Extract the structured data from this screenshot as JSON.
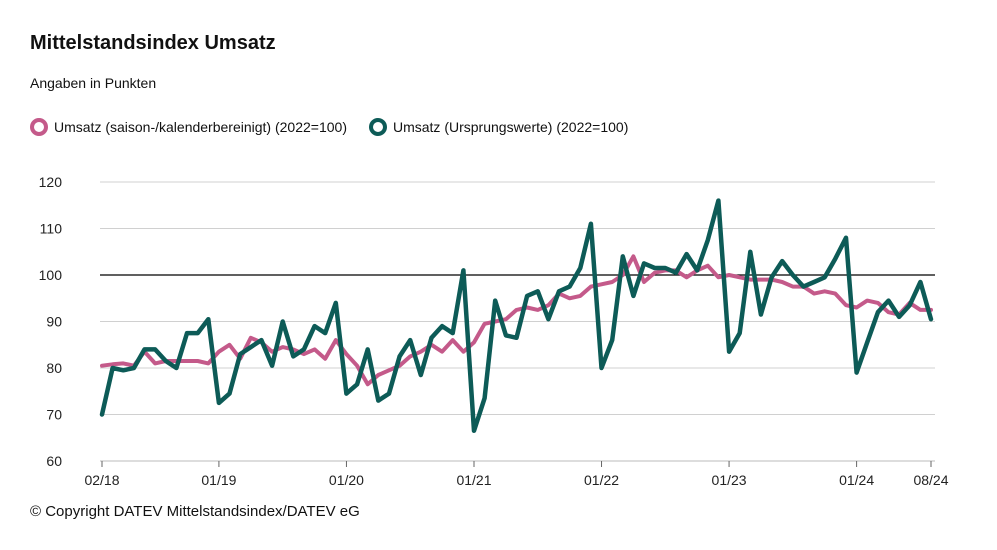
{
  "chart_data": {
    "type": "line",
    "title": "Mittelstandsindex Umsatz",
    "subtitle": "Angaben in Punkten",
    "footer": "© Copyright DATEV Mittelstandsindex/DATEV eG",
    "ylim": [
      60,
      120
    ],
    "yticks": [
      "60",
      "70",
      "80",
      "90",
      "100",
      "110",
      "120"
    ],
    "reference_line": 100,
    "grid": true,
    "legend_position": "top-left",
    "x_start": "02/18",
    "x_end": "08/24",
    "xticks": [
      {
        "label": "02/18",
        "index": 0
      },
      {
        "label": "01/19",
        "index": 11
      },
      {
        "label": "01/20",
        "index": 23
      },
      {
        "label": "01/21",
        "index": 35
      },
      {
        "label": "01/22",
        "index": 47
      },
      {
        "label": "01/23",
        "index": 59
      },
      {
        "label": "01/24",
        "index": 71
      },
      {
        "label": "08/24",
        "index": 78
      }
    ],
    "series": [
      {
        "name": "Umsatz (saison-/kalenderbereinigt) (2022=100)",
        "color": "#c45a8a",
        "values": [
          80.5,
          80.8,
          81.0,
          80.5,
          83.5,
          81.0,
          81.5,
          81.5,
          81.5,
          81.5,
          81.0,
          83.5,
          85.0,
          82.0,
          86.5,
          85.5,
          83.5,
          84.5,
          84.0,
          83.0,
          84.0,
          82.0,
          86.0,
          83.0,
          80.5,
          76.5,
          78.5,
          79.5,
          80.5,
          82.5,
          83.5,
          85.0,
          83.5,
          86.0,
          83.5,
          85.5,
          89.5,
          90.0,
          90.5,
          92.5,
          93.0,
          92.5,
          93.5,
          96.0,
          95.0,
          95.5,
          97.5,
          98.0,
          98.5,
          100.0,
          104.0,
          98.5,
          100.5,
          101.0,
          101.0,
          99.5,
          101.0,
          102.0,
          99.5,
          100.0,
          99.5,
          99.0,
          99.0,
          99.0,
          98.5,
          97.5,
          97.5,
          96.0,
          96.5,
          96.0,
          93.5,
          93.0,
          94.5,
          94.0,
          92.0,
          91.5,
          94.0,
          92.5,
          92.5
        ]
      },
      {
        "name": "Umsatz (Ursprungswerte) (2022=100)",
        "color": "#0d5b57",
        "values": [
          70.0,
          80.0,
          79.5,
          80.0,
          84.0,
          84.0,
          81.5,
          80.0,
          87.5,
          87.5,
          90.5,
          72.5,
          74.5,
          83.0,
          84.5,
          86.0,
          80.5,
          90.0,
          82.5,
          84.0,
          89.0,
          87.5,
          94.0,
          74.5,
          76.5,
          84.0,
          73.0,
          74.5,
          82.5,
          86.0,
          78.5,
          86.5,
          89.0,
          87.5,
          101.0,
          66.5,
          73.5,
          94.5,
          87.0,
          86.5,
          95.5,
          96.5,
          90.5,
          96.5,
          97.5,
          101.5,
          111.0,
          80.0,
          86.0,
          104.0,
          95.5,
          102.5,
          101.5,
          101.5,
          100.5,
          104.5,
          101.0,
          107.5,
          116.0,
          83.5,
          87.5,
          105.0,
          91.5,
          99.5,
          103.0,
          100.0,
          97.5,
          98.5,
          99.5,
          103.5,
          108.0,
          79.0,
          85.5,
          92.0,
          94.5,
          91.0,
          93.5,
          98.5,
          90.5
        ]
      }
    ]
  }
}
